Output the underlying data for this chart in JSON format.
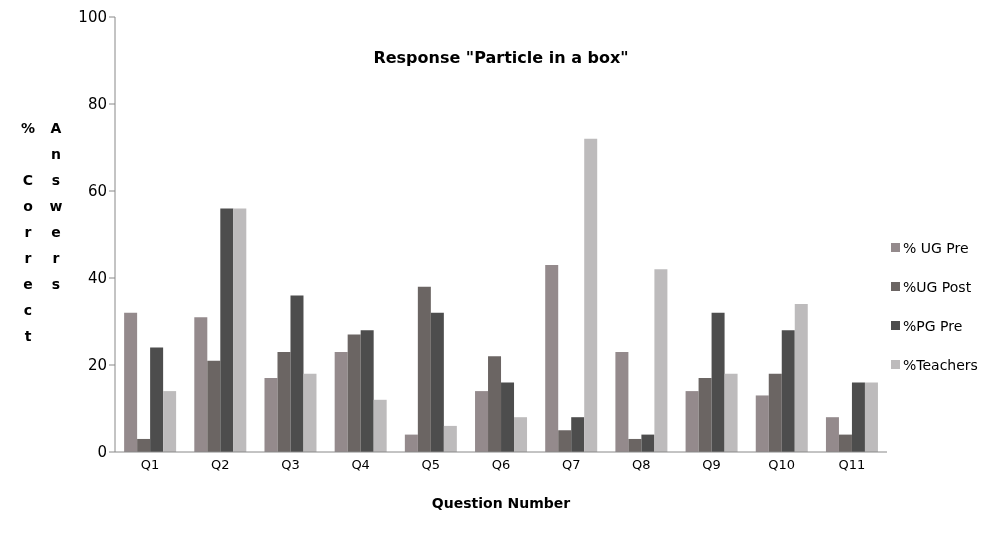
{
  "chart_data": {
    "type": "bar",
    "title": "Response \"Particle in a box\"",
    "xlabel": "Question Number",
    "ylabel": "% Correct Answers",
    "categories": [
      "Q1",
      "Q2",
      "Q3",
      "Q4",
      "Q5",
      "Q6",
      "Q7",
      "Q8",
      "Q9",
      "Q10",
      "Q11"
    ],
    "series": [
      {
        "name": "% UG Pre",
        "color": "#948a8c",
        "values": [
          32,
          31,
          17,
          23,
          4,
          14,
          43,
          23,
          14,
          13,
          8
        ]
      },
      {
        "name": "%UG Post",
        "color": "#6b6563",
        "values": [
          3,
          21,
          23,
          27,
          38,
          22,
          5,
          3,
          17,
          18,
          4
        ]
      },
      {
        "name": "%PG Pre",
        "color": "#4d4d4d",
        "values": [
          24,
          56,
          36,
          28,
          32,
          16,
          8,
          4,
          32,
          28,
          16
        ]
      },
      {
        "name": "%Teachers",
        "color": "#bdbbbc",
        "values": [
          14,
          56,
          18,
          12,
          6,
          8,
          72,
          42,
          18,
          34,
          16
        ]
      }
    ],
    "ylim": [
      0,
      100
    ],
    "yticks": [
      0,
      20,
      40,
      60,
      80,
      100
    ],
    "grid": false,
    "legend": "right"
  }
}
